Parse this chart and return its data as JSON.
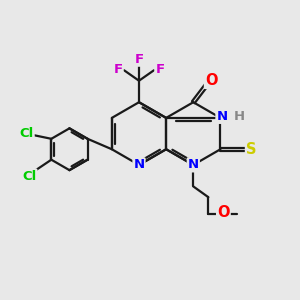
{
  "bg_color": "#e8e8e8",
  "bond_color": "#1a1a1a",
  "bond_width": 1.6,
  "atom_colors": {
    "N": "#0000ff",
    "O": "#ff0000",
    "S": "#cccc00",
    "F": "#cc00cc",
    "Cl": "#00cc00",
    "H": "#888888",
    "C": "#1a1a1a"
  },
  "font_size": 9.5,
  "fig_size": [
    3.0,
    3.0
  ],
  "dpi": 100
}
